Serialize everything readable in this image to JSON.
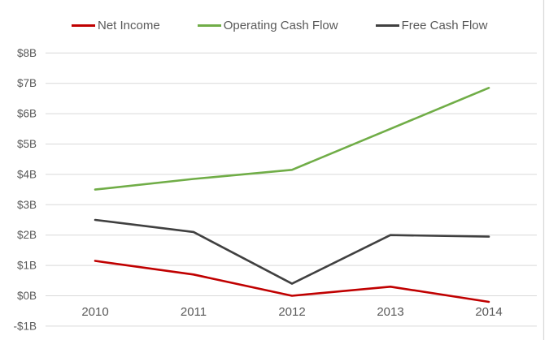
{
  "chart_data": {
    "type": "line",
    "title": "",
    "xlabel": "",
    "ylabel": "",
    "categories": [
      "2010",
      "2011",
      "2012",
      "2013",
      "2014"
    ],
    "series": [
      {
        "name": "Net Income",
        "color": "#C00000",
        "values": [
          1.15,
          0.7,
          0.0,
          0.3,
          -0.2
        ]
      },
      {
        "name": "Operating Cash Flow",
        "color": "#70AD47",
        "values": [
          3.5,
          3.85,
          4.15,
          5.5,
          6.85
        ]
      },
      {
        "name": "Free Cash Flow",
        "color": "#404040",
        "values": [
          2.5,
          2.1,
          0.4,
          2.0,
          1.95
        ]
      }
    ],
    "y_ticks": [
      -1,
      0,
      1,
      2,
      3,
      4,
      5,
      6,
      7,
      8
    ],
    "y_tick_labels": [
      "-$1B",
      "$0B",
      "$1B",
      "$2B",
      "$3B",
      "$4B",
      "$5B",
      "$6B",
      "$7B",
      "$8B"
    ],
    "ylim": [
      -1,
      8
    ],
    "grid": true,
    "legend_position": "top"
  },
  "colors": {
    "background": "#FFFFFF",
    "gridline": "#D9D9D9",
    "chart_border": "#D9D9D9",
    "axis_text": "#595959"
  }
}
